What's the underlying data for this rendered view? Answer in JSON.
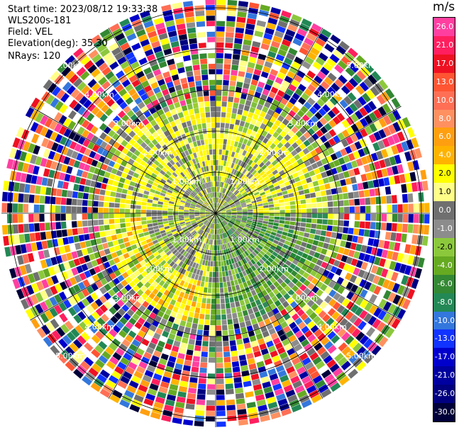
{
  "header": {
    "start_time": "Start time: 2023/08/12 19:33:38",
    "instrument": "WLS200s-181",
    "field": "Field: VEL",
    "elevation": "Elevation(deg): 35.30",
    "nrays": "NRays: 120"
  },
  "colorbar": {
    "unit": "m/s",
    "labels": [
      "26.0",
      "21.0",
      "17.0",
      "13.0",
      "10.0",
      "8.0",
      "6.0",
      "4.0",
      "2.0",
      "1.0",
      "0.0",
      "-1.0",
      "-2.0",
      "-4.0",
      "-6.0",
      "-8.0",
      "-10.0",
      "-13.0",
      "-17.0",
      "-21.0",
      "-26.0",
      "-30.0"
    ],
    "colors": [
      "#ff3fa0",
      "#ff1f5f",
      "#ee1122",
      "#ff5533",
      "#ff6f55",
      "#ff9060",
      "#ff9f10",
      "#ffb300",
      "#ffff00",
      "#ffff88",
      "#6f6f6f",
      "#8c8c8c",
      "#8cc83c",
      "#66aa22",
      "#338833",
      "#228855",
      "#3377dd",
      "#1133ff",
      "#0000cc",
      "#0000a0",
      "#000080",
      "#00003a"
    ],
    "dark_text_labels": [
      "2.0",
      "1.0",
      "-2.0"
    ]
  },
  "range_ring_labels": [
    "1.00km",
    "2.00km",
    "3.00km",
    "4.00km",
    "5.00km"
  ],
  "plot": {
    "type": "ppi-velocity",
    "num_rays": 120,
    "num_rings": 5
  }
}
